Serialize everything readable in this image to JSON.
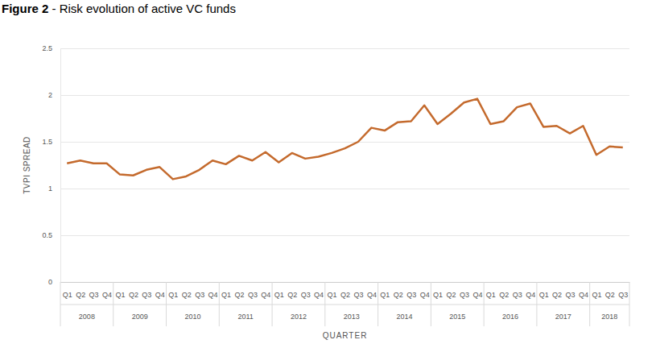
{
  "chart_data": {
    "type": "line",
    "title": "Figure 2 - Risk evolution of active VC funds",
    "x_label": "QUARTER",
    "y_label": "TVPI SPREAD",
    "categories": [
      "Q1",
      "Q2",
      "Q3",
      "Q4",
      "Q1",
      "Q2",
      "Q3",
      "Q4",
      "Q1",
      "Q2",
      "Q3",
      "Q4",
      "Q1",
      "Q2",
      "Q3",
      "Q4",
      "Q1",
      "Q2",
      "Q3",
      "Q4",
      "Q1",
      "Q2",
      "Q3",
      "Q4",
      "Q1",
      "Q2",
      "Q3",
      "Q4",
      "Q1",
      "Q2",
      "Q3",
      "Q4",
      "Q1",
      "Q2",
      "Q3",
      "Q4",
      "Q1",
      "Q2",
      "Q3",
      "Q4",
      "Q1",
      "Q2",
      "Q3"
    ],
    "groups": [
      "2008",
      "2009",
      "2010",
      "2011",
      "2012",
      "2013",
      "2014",
      "2015",
      "2016",
      "2017",
      "2018"
    ],
    "values": [
      1.27,
      1.3,
      1.27,
      1.27,
      1.15,
      1.14,
      1.2,
      1.23,
      1.1,
      1.13,
      1.2,
      1.3,
      1.26,
      1.35,
      1.3,
      1.39,
      1.28,
      1.38,
      1.32,
      1.34,
      1.38,
      1.43,
      1.5,
      1.65,
      1.62,
      1.71,
      1.72,
      1.89,
      1.69,
      1.8,
      1.92,
      1.96,
      1.69,
      1.72,
      1.87,
      1.91,
      1.66,
      1.67,
      1.59,
      1.67,
      1.36,
      1.45,
      1.44
    ],
    "color": "#c46a2d",
    "ylim": [
      0,
      2.5
    ],
    "yticks": [
      0,
      0.5,
      1,
      1.5,
      2,
      2.5
    ],
    "grid": true
  }
}
